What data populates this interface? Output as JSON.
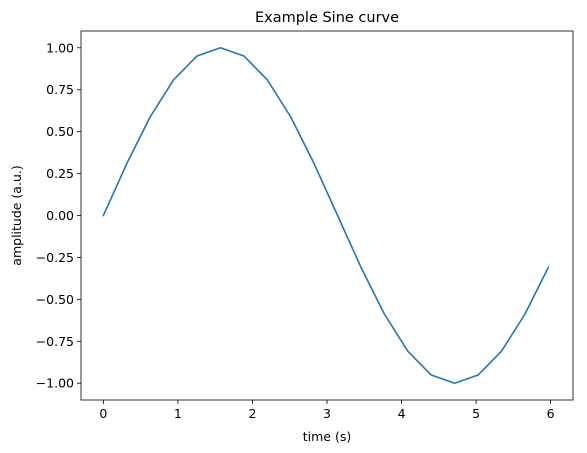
{
  "chart_data": {
    "type": "line",
    "title": "Example Sine curve",
    "xlabel": "time (s)",
    "ylabel": "amplitude (a.u.)",
    "xlim": [
      -0.3,
      6.3
    ],
    "ylim": [
      -1.1,
      1.1
    ],
    "xticks": [
      0,
      1,
      2,
      3,
      4,
      5,
      6
    ],
    "xtick_labels": [
      "0",
      "1",
      "2",
      "3",
      "4",
      "5",
      "6"
    ],
    "yticks": [
      -1.0,
      -0.75,
      -0.5,
      -0.25,
      0.0,
      0.25,
      0.5,
      0.75,
      1.0
    ],
    "ytick_labels": [
      "−1.00",
      "−0.75",
      "−0.50",
      "−0.25",
      "0.00",
      "0.25",
      "0.50",
      "0.75",
      "1.00"
    ],
    "grid": false,
    "series": [
      {
        "color": "#1f77b4",
        "x": [
          0.0,
          0.314,
          0.628,
          0.942,
          1.257,
          1.571,
          1.885,
          2.199,
          2.513,
          2.827,
          3.142,
          3.456,
          3.77,
          4.084,
          4.398,
          4.712,
          5.027,
          5.341,
          5.655,
          5.969
        ],
        "y": [
          0.0,
          0.309,
          0.588,
          0.809,
          0.951,
          1.0,
          0.951,
          0.809,
          0.588,
          0.309,
          0.0,
          -0.309,
          -0.588,
          -0.809,
          -0.951,
          -1.0,
          -0.951,
          -0.809,
          -0.588,
          -0.309
        ]
      }
    ]
  }
}
